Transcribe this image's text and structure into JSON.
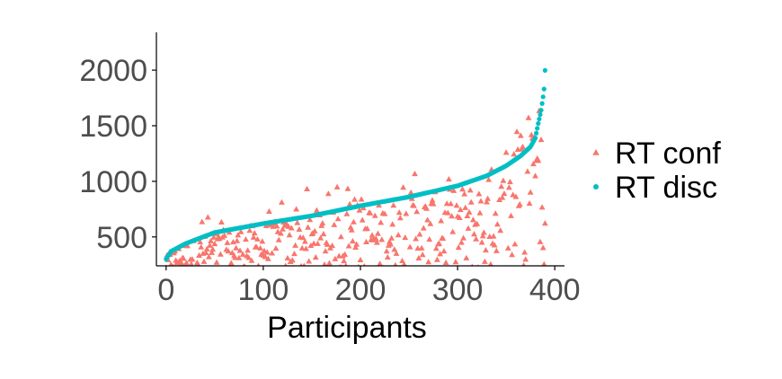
{
  "chart_data": {
    "type": "scatter",
    "title": "",
    "xlabel": "Participants",
    "ylabel": "",
    "xlim": [
      -10,
      410
    ],
    "ylim": [
      240,
      2340
    ],
    "x_ticks": [
      0,
      100,
      200,
      300,
      400
    ],
    "x_tick_labels": [
      "0",
      "100",
      "200",
      "300",
      "400"
    ],
    "y_ticks": [
      500,
      1000,
      1500,
      2000
    ],
    "y_tick_labels": [
      "500",
      "1000",
      "1500",
      "2000"
    ],
    "grid": false,
    "legend_position": "right",
    "n_participants": 391,
    "series": [
      {
        "name": "RT conf",
        "marker": "triangle",
        "color": "#F8766D",
        "description": "Confidence RT per participant, scattered mostly below the discrimination RT curve; ranges roughly 200 to 1650 ms, typically 300-900 ms.",
        "approx_range": [
          200,
          1650
        ]
      },
      {
        "name": "RT disc",
        "marker": "circle",
        "color": "#00BFC4",
        "description": "Discrimination RT sorted ascending across participants, forming a smooth rising curve.",
        "key_points": [
          {
            "x": 0,
            "y": 300
          },
          {
            "x": 5,
            "y": 370
          },
          {
            "x": 20,
            "y": 440
          },
          {
            "x": 50,
            "y": 540
          },
          {
            "x": 100,
            "y": 620
          },
          {
            "x": 150,
            "y": 690
          },
          {
            "x": 200,
            "y": 780
          },
          {
            "x": 250,
            "y": 860
          },
          {
            "x": 300,
            "y": 960
          },
          {
            "x": 330,
            "y": 1050
          },
          {
            "x": 350,
            "y": 1140
          },
          {
            "x": 365,
            "y": 1230
          },
          {
            "x": 375,
            "y": 1310
          },
          {
            "x": 380,
            "y": 1390
          },
          {
            "x": 383,
            "y": 1520
          },
          {
            "x": 386,
            "y": 1640
          },
          {
            "x": 388,
            "y": 1760
          },
          {
            "x": 389,
            "y": 1830
          },
          {
            "x": 391,
            "y": 2165
          }
        ]
      }
    ]
  }
}
